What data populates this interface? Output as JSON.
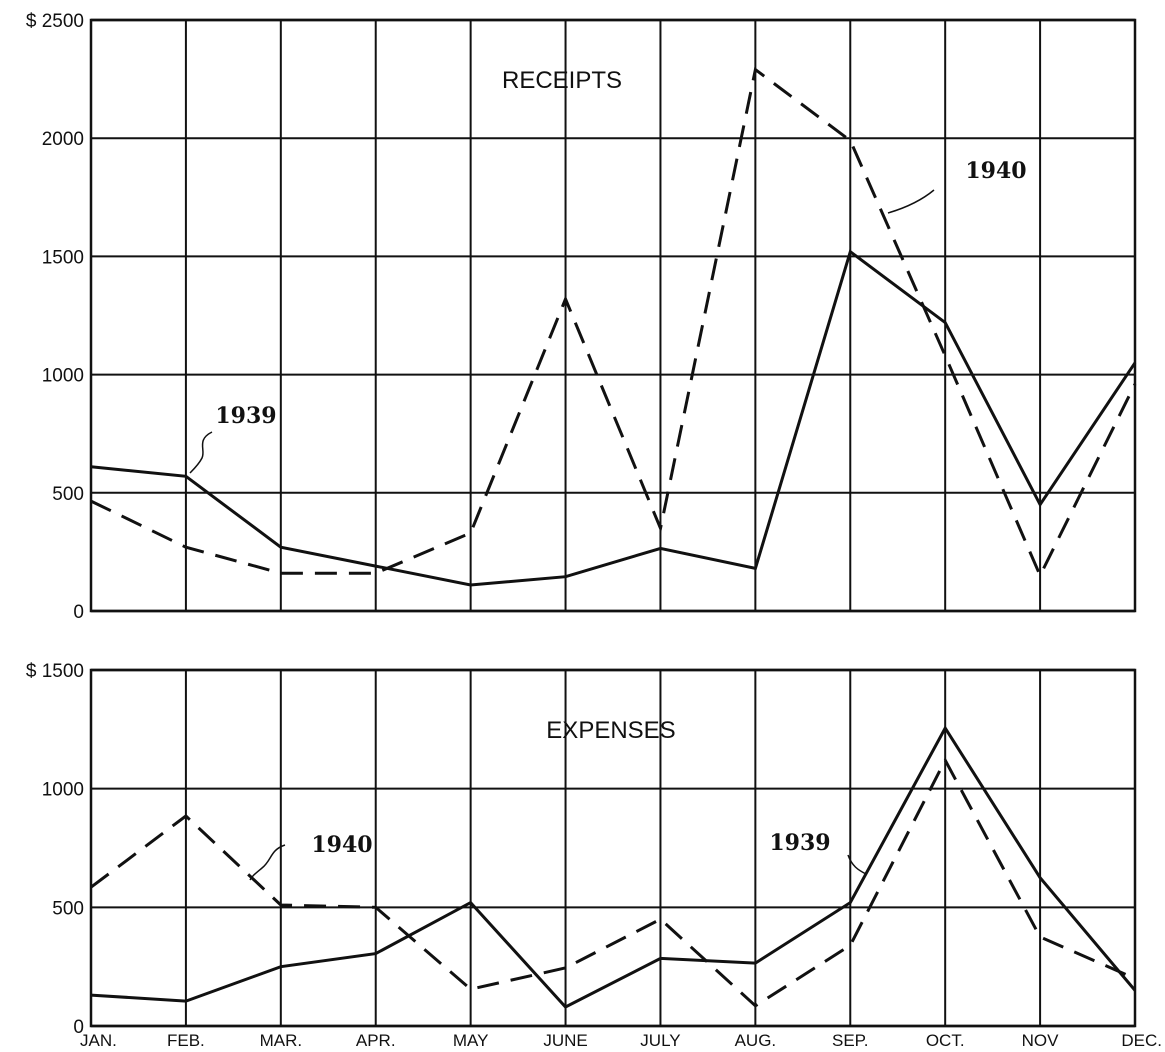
{
  "chart_data": [
    {
      "type": "line",
      "title": "RECEIPTS",
      "categories": [
        "JAN.",
        "FEB.",
        "MAR.",
        "APR.",
        "MAY",
        "JUNE",
        "JULY",
        "AUG.",
        "SEP.",
        "OCT.",
        "NOV",
        "DEC."
      ],
      "ylim": [
        0,
        2500
      ],
      "y_ticks": [
        0,
        500,
        1000,
        1500,
        2000,
        2500
      ],
      "y_tick_labels": [
        "0",
        "500",
        "1000",
        "1500",
        "2000",
        "$ 2500"
      ],
      "grid": true,
      "series": [
        {
          "name": "1939",
          "style": "solid",
          "values": [
            610,
            570,
            270,
            190,
            110,
            145,
            265,
            180,
            1520,
            1220,
            450,
            1050
          ]
        },
        {
          "name": "1940",
          "style": "dashed",
          "values": [
            465,
            270,
            160,
            160,
            330,
            1320,
            350,
            2290,
            1990,
            1080,
            150,
            960
          ]
        }
      ]
    },
    {
      "type": "line",
      "title": "EXPENSES",
      "categories": [
        "JAN.",
        "FEB.",
        "MAR.",
        "APR.",
        "MAY",
        "JUNE",
        "JULY",
        "AUG.",
        "SEP.",
        "OCT.",
        "NOV",
        "DEC."
      ],
      "ylim": [
        0,
        1500
      ],
      "y_ticks": [
        0,
        500,
        1000,
        1500
      ],
      "y_tick_labels": [
        "0",
        "500",
        "1000",
        "$ 1500"
      ],
      "grid": true,
      "series": [
        {
          "name": "1939",
          "style": "solid",
          "values": [
            130,
            105,
            250,
            305,
            520,
            80,
            285,
            265,
            520,
            1255,
            625,
            150
          ]
        },
        {
          "name": "1940",
          "style": "dashed",
          "values": [
            585,
            885,
            510,
            500,
            155,
            245,
            450,
            85,
            340,
            1120,
            375,
            200
          ]
        }
      ]
    }
  ]
}
